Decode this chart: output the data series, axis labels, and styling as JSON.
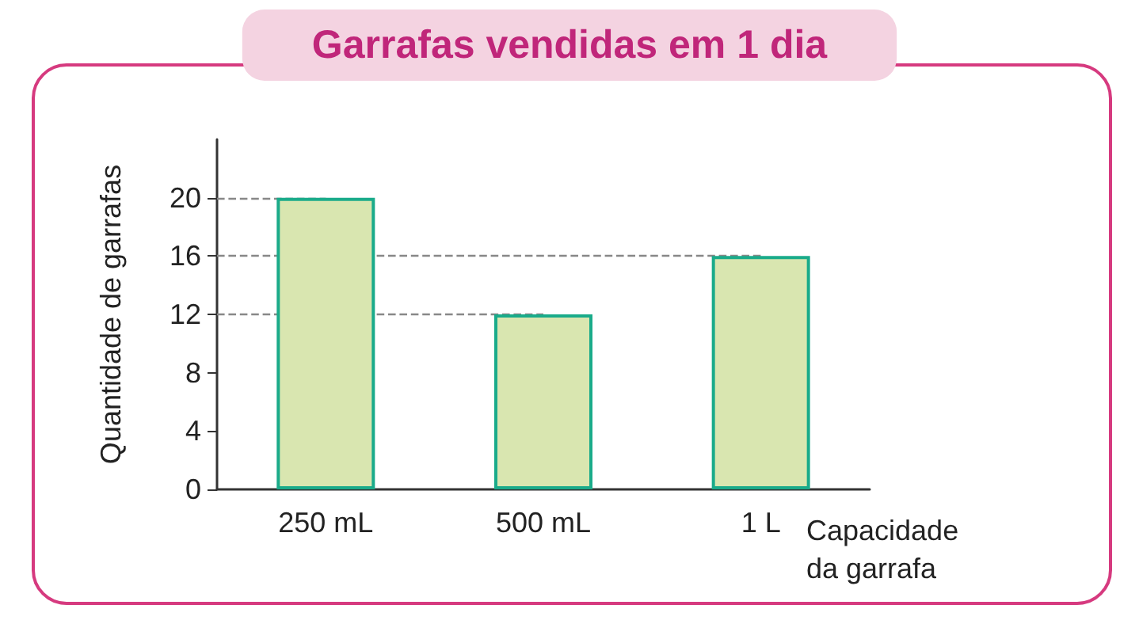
{
  "chart_data": {
    "type": "bar",
    "title": "Garrafas vendidas em 1 dia",
    "xlabel": "Capacidade\nda garrafa",
    "ylabel": "Quantidade de garrafas",
    "categories": [
      "250 mL",
      "500 mL",
      "1 L"
    ],
    "values": [
      20,
      12,
      16
    ],
    "color": "#d9e6b0",
    "ylim": [
      0,
      24
    ],
    "yticks": [
      0,
      4,
      8,
      12,
      16,
      20
    ],
    "grid": false,
    "ref_lines": [
      {
        "axis": "y",
        "value": 20,
        "line_style": "dashed",
        "color": "#888888"
      },
      {
        "axis": "y",
        "value": 16,
        "line_style": "dashed",
        "color": "#888888"
      },
      {
        "axis": "y",
        "value": 12,
        "line_style": "dashed",
        "color": "#888888"
      }
    ]
  }
}
